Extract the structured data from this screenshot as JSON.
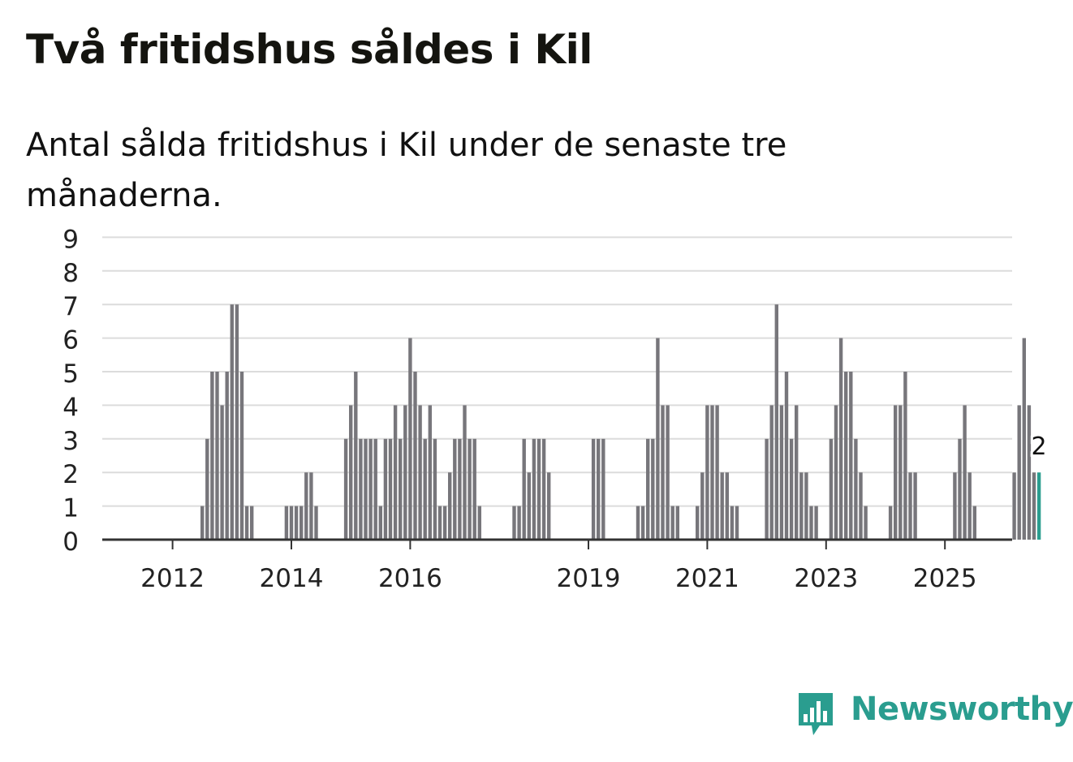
{
  "chart_data": {
    "type": "bar",
    "title": "Två fritidshus såldes i Kil",
    "subtitle": "Antal sålda fritidshus i Kil under de senaste tre månaderna.",
    "ylim": [
      0,
      9
    ],
    "yticks": [
      0,
      1,
      2,
      3,
      4,
      5,
      6,
      7,
      8,
      9
    ],
    "grid": true,
    "x_start": "2011-09",
    "xtick_labels": [
      {
        "label": "2012",
        "date": "2012-01"
      },
      {
        "label": "2014",
        "date": "2014-01"
      },
      {
        "label": "2016",
        "date": "2016-01"
      },
      {
        "label": "2019",
        "date": "2019-01"
      },
      {
        "label": "2021",
        "date": "2021-01"
      },
      {
        "label": "2023",
        "date": "2023-01"
      },
      {
        "label": "2025",
        "date": "2025-01"
      }
    ],
    "highlight_label": "2",
    "values": [
      0,
      0,
      0,
      0,
      0,
      0,
      0,
      0,
      0,
      0,
      1,
      3,
      5,
      5,
      4,
      5,
      7,
      7,
      5,
      1,
      1,
      0,
      0,
      0,
      0,
      0,
      0,
      1,
      1,
      1,
      1,
      2,
      2,
      1,
      0,
      0,
      0,
      0,
      0,
      3,
      4,
      5,
      3,
      3,
      3,
      3,
      1,
      3,
      3,
      4,
      3,
      4,
      6,
      5,
      4,
      3,
      4,
      3,
      1,
      1,
      2,
      3,
      3,
      4,
      3,
      3,
      1,
      0,
      0,
      0,
      0,
      0,
      0,
      1,
      1,
      3,
      2,
      3,
      3,
      3,
      2,
      0,
      0,
      0,
      0,
      0,
      0,
      0,
      0,
      3,
      3,
      3,
      0,
      0,
      0,
      0,
      0,
      0,
      1,
      1,
      3,
      3,
      6,
      4,
      4,
      1,
      1,
      0,
      0,
      0,
      1,
      2,
      4,
      4,
      4,
      2,
      2,
      1,
      1,
      0,
      0,
      0,
      0,
      0,
      3,
      4,
      7,
      4,
      5,
      3,
      4,
      2,
      2,
      1,
      1,
      0,
      0,
      3,
      4,
      6,
      5,
      5,
      3,
      2,
      1,
      0,
      0,
      0,
      0,
      1,
      4,
      4,
      5,
      2,
      2,
      0,
      0,
      0,
      0,
      0,
      0,
      0,
      2,
      3,
      4,
      2,
      1,
      0,
      0,
      0,
      0,
      0,
      0,
      0,
      2,
      4,
      6,
      4,
      2,
      2
    ],
    "colors": {
      "bar": "#77767b",
      "highlight": "#2a9d8f",
      "grid": "#dcdcdc",
      "axis": "#333333"
    }
  },
  "logo": {
    "text": "Newsworthy",
    "icon": "newsworthy-bars-icon",
    "color": "#2a9d8f"
  }
}
